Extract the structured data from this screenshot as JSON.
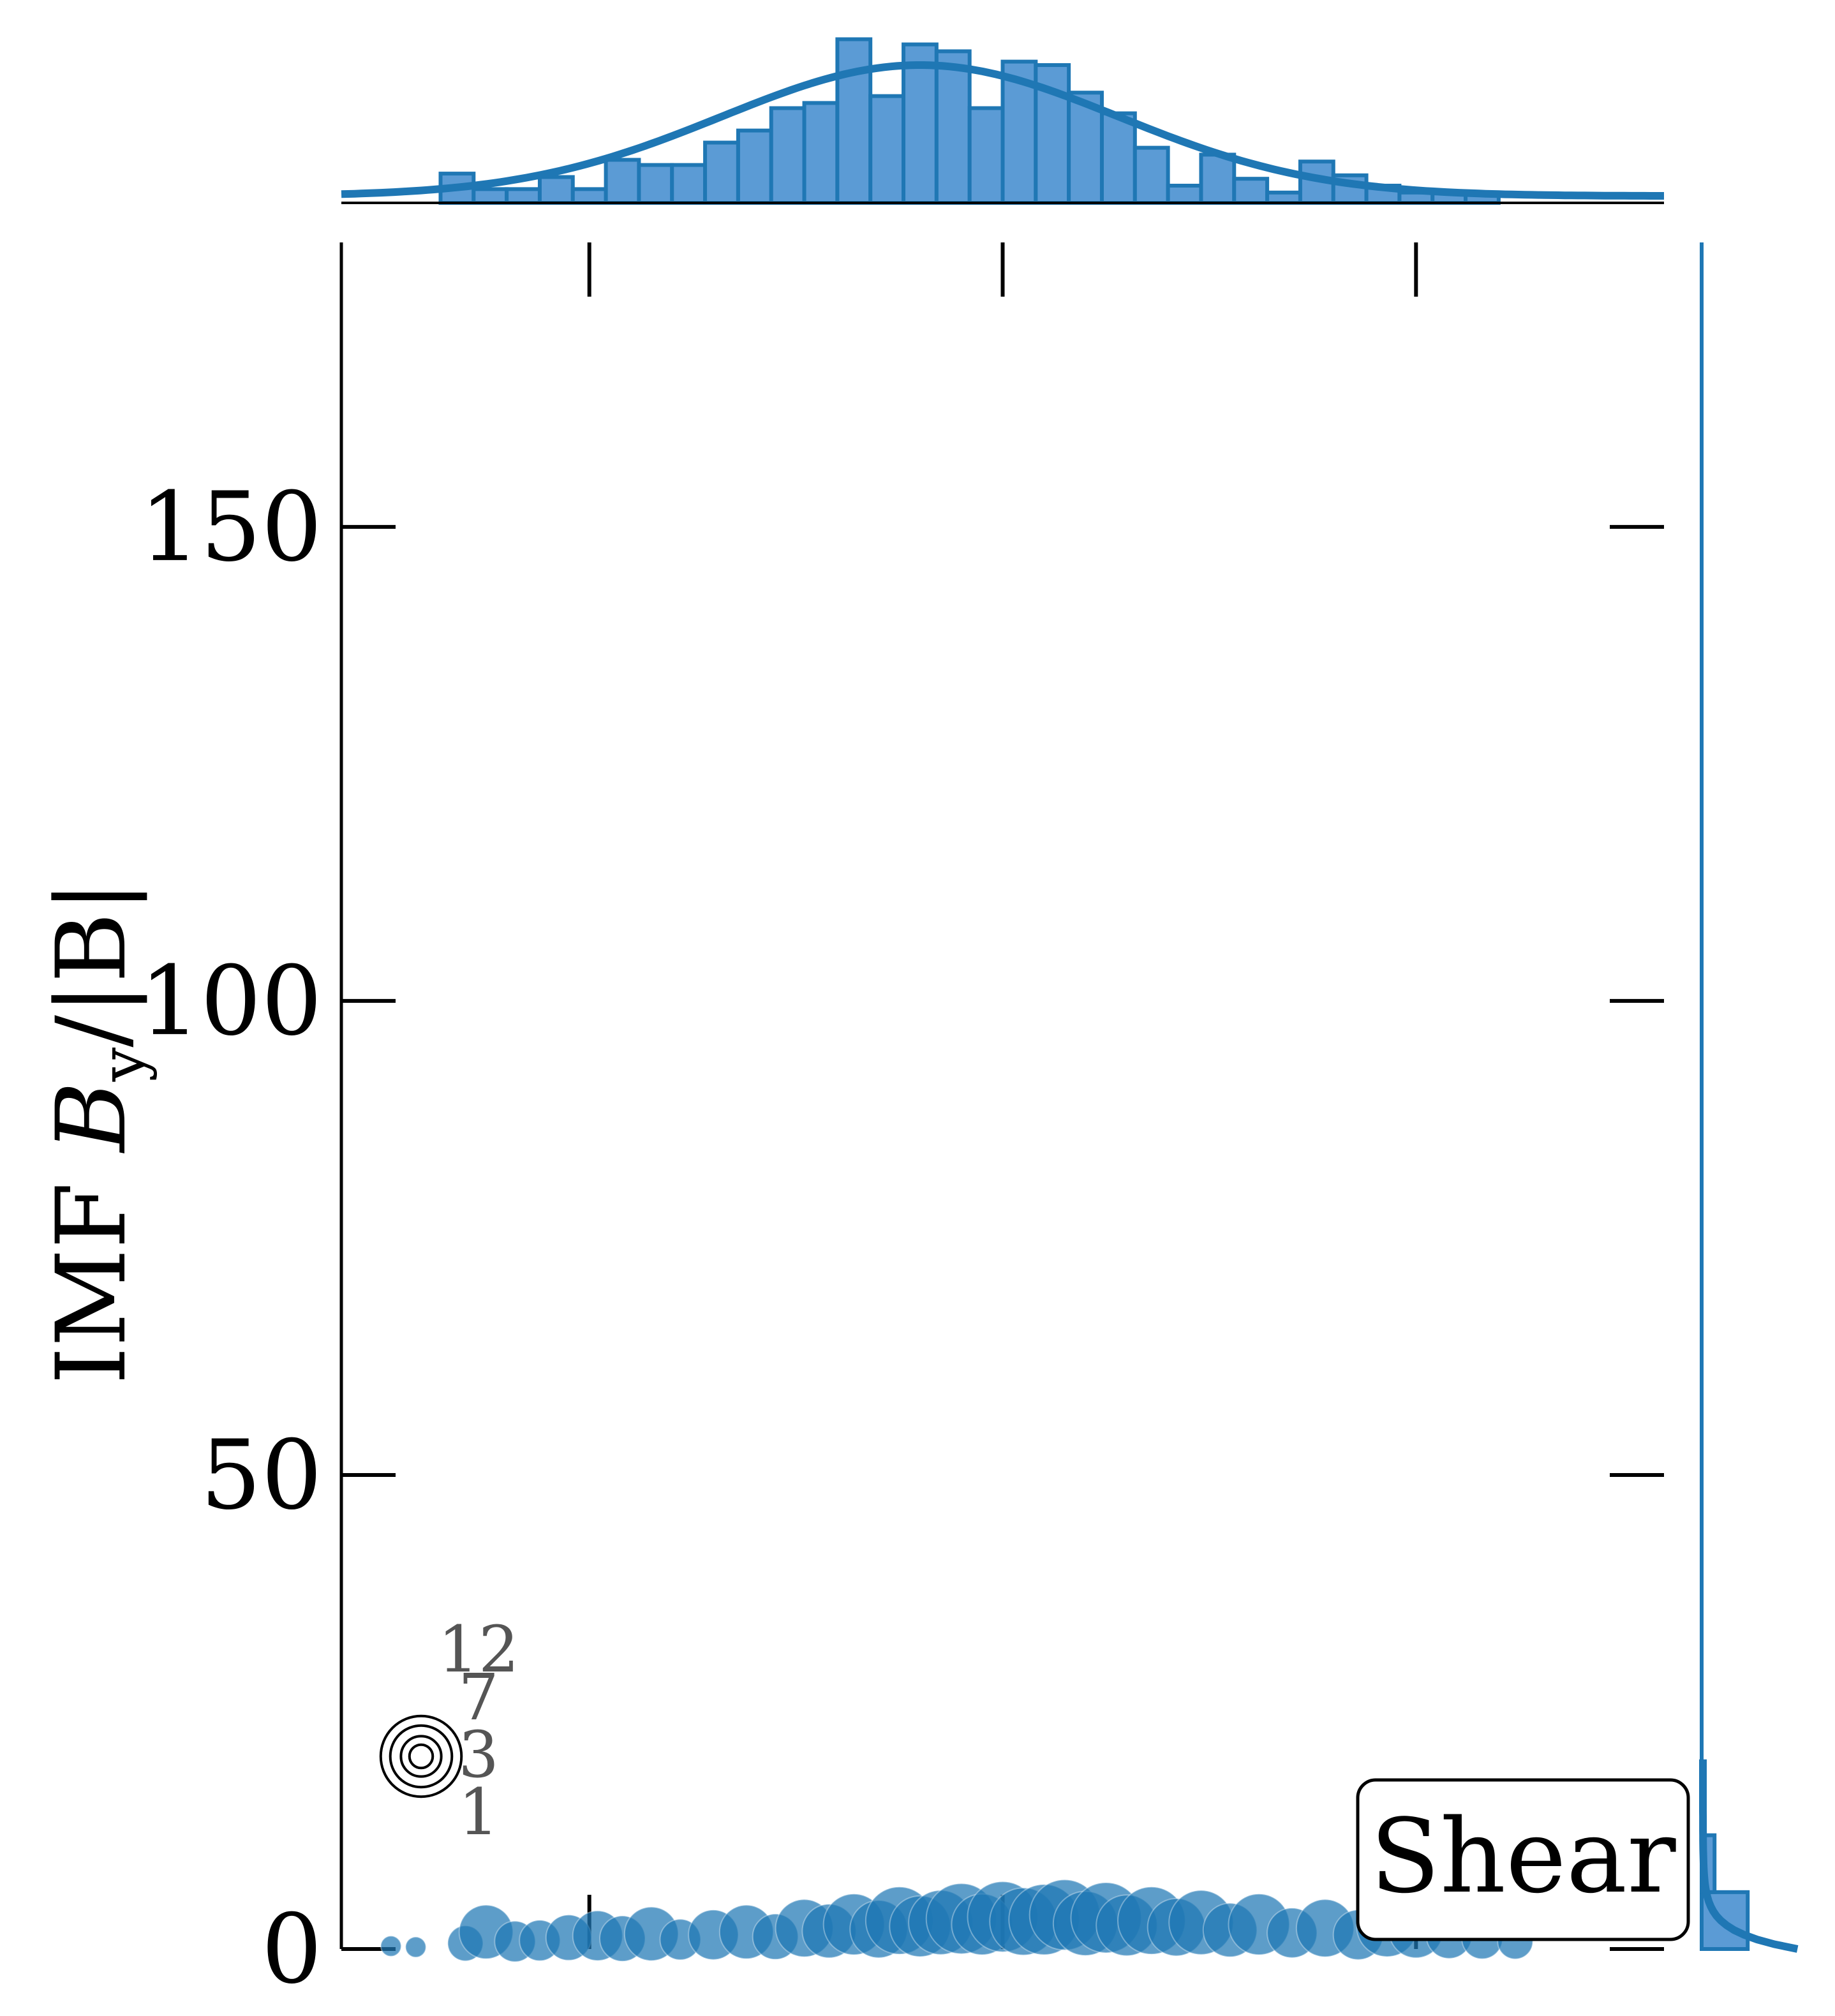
{
  "colors": {
    "accent": "#1f77b4",
    "bar_fill": "#5b9bd5",
    "axis": "#000000",
    "size_legend_text": "#555555"
  },
  "chart_data": {
    "type": "scatter",
    "title": "",
    "xlabel": "",
    "ylabel": "IMF B_y/|B|",
    "ylabel_parts": {
      "prefix": "IMF ",
      "var": "B",
      "sub": "y",
      "suffix": "/|B|"
    },
    "xlim": [
      -1.6,
      1.6
    ],
    "ylim": [
      0,
      180
    ],
    "yticks": [
      0,
      50,
      100,
      150
    ],
    "ytick_labels": [
      "0",
      "50",
      "100",
      "150"
    ],
    "xticks": [
      -1,
      0,
      1
    ],
    "grid": false,
    "annotation": "Shear",
    "annotation_position": "bottom-right",
    "size_legend": {
      "labels": [
        "12",
        "7",
        "3",
        "1"
      ],
      "values": [
        12,
        7,
        3,
        1
      ]
    },
    "points": [
      {
        "x": -1.48,
        "y": 0.3,
        "s": 1
      },
      {
        "x": -1.42,
        "y": 0.2,
        "s": 1
      },
      {
        "x": -1.3,
        "y": 0.6,
        "s": 3
      },
      {
        "x": -1.25,
        "y": 1.8,
        "s": 7
      },
      {
        "x": -1.18,
        "y": 0.8,
        "s": 4
      },
      {
        "x": -1.12,
        "y": 0.9,
        "s": 4
      },
      {
        "x": -1.05,
        "y": 1.2,
        "s": 5
      },
      {
        "x": -0.98,
        "y": 1.4,
        "s": 6
      },
      {
        "x": -0.92,
        "y": 1.1,
        "s": 5
      },
      {
        "x": -0.85,
        "y": 1.6,
        "s": 7
      },
      {
        "x": -0.78,
        "y": 1.0,
        "s": 4
      },
      {
        "x": -0.7,
        "y": 1.5,
        "s": 6
      },
      {
        "x": -0.62,
        "y": 1.8,
        "s": 7
      },
      {
        "x": -0.55,
        "y": 1.3,
        "s": 5
      },
      {
        "x": -0.48,
        "y": 2.2,
        "s": 8
      },
      {
        "x": -0.42,
        "y": 1.9,
        "s": 7
      },
      {
        "x": -0.36,
        "y": 2.6,
        "s": 9
      },
      {
        "x": -0.3,
        "y": 2.1,
        "s": 8
      },
      {
        "x": -0.25,
        "y": 3.0,
        "s": 11
      },
      {
        "x": -0.2,
        "y": 2.4,
        "s": 9
      },
      {
        "x": -0.15,
        "y": 2.8,
        "s": 10
      },
      {
        "x": -0.1,
        "y": 3.2,
        "s": 12
      },
      {
        "x": -0.05,
        "y": 2.6,
        "s": 9
      },
      {
        "x": 0.0,
        "y": 3.4,
        "s": 12
      },
      {
        "x": 0.05,
        "y": 2.9,
        "s": 11
      },
      {
        "x": 0.1,
        "y": 3.1,
        "s": 12
      },
      {
        "x": 0.15,
        "y": 3.6,
        "s": 12
      },
      {
        "x": 0.2,
        "y": 2.7,
        "s": 10
      },
      {
        "x": 0.25,
        "y": 3.3,
        "s": 12
      },
      {
        "x": 0.3,
        "y": 2.5,
        "s": 9
      },
      {
        "x": 0.36,
        "y": 3.0,
        "s": 11
      },
      {
        "x": 0.42,
        "y": 2.3,
        "s": 8
      },
      {
        "x": 0.48,
        "y": 2.8,
        "s": 10
      },
      {
        "x": 0.55,
        "y": 2.0,
        "s": 7
      },
      {
        "x": 0.62,
        "y": 2.6,
        "s": 9
      },
      {
        "x": 0.7,
        "y": 1.7,
        "s": 6
      },
      {
        "x": 0.78,
        "y": 2.2,
        "s": 8
      },
      {
        "x": 0.86,
        "y": 1.5,
        "s": 6
      },
      {
        "x": 0.93,
        "y": 2.4,
        "s": 9
      },
      {
        "x": 1.0,
        "y": 1.9,
        "s": 7
      },
      {
        "x": 1.08,
        "y": 1.4,
        "s": 5
      },
      {
        "x": 1.16,
        "y": 1.1,
        "s": 4
      },
      {
        "x": 1.24,
        "y": 0.8,
        "s": 3
      }
    ],
    "top_histogram": {
      "bins": [
        -1.6,
        -1.52,
        -1.44,
        -1.36,
        -1.28,
        -1.2,
        -1.12,
        -1.04,
        -0.96,
        -0.88,
        -0.8,
        -0.72,
        -0.64,
        -0.56,
        -0.48,
        -0.4,
        -0.32,
        -0.24,
        -0.16,
        -0.08,
        0.0,
        0.08,
        0.16,
        0.24,
        0.32,
        0.4,
        0.48,
        0.56,
        0.64,
        0.72,
        0.8,
        0.88,
        0.96,
        1.04,
        1.12,
        1.2,
        1.28,
        1.36,
        1.44,
        1.52,
        1.6
      ],
      "counts": [
        0,
        0,
        0,
        0.17,
        0.08,
        0.08,
        0.15,
        0.08,
        0.25,
        0.22,
        0.22,
        0.35,
        0.42,
        0.55,
        0.58,
        0.95,
        0.62,
        0.92,
        0.88,
        0.55,
        0.82,
        0.8,
        0.64,
        0.52,
        0.32,
        0.1,
        0.28,
        0.14,
        0.06,
        0.24,
        0.16,
        0.1,
        0.06,
        0.06,
        0.06,
        0,
        0,
        0,
        0,
        0
      ],
      "kde_peak_x": -0.2,
      "kde_sigma": 0.48
    },
    "right_histogram": {
      "bins": [
        0,
        6,
        12,
        18,
        24
      ],
      "counts": [
        1.0,
        0.28,
        0,
        0
      ]
    }
  }
}
